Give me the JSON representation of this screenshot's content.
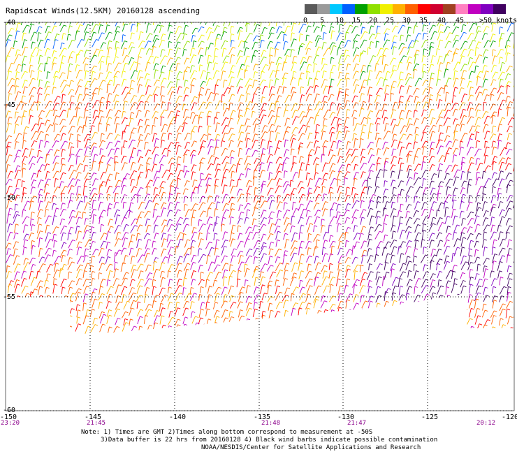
{
  "title": "Rapidscat Winds(12.5KM) 20160128 ascending",
  "colorbar": {
    "unit_label": ">50 knots",
    "ticks": [
      "0",
      "5",
      "10",
      "15",
      "20",
      "25",
      "30",
      "35",
      "40",
      "45"
    ],
    "colors": [
      "#5a5a5a",
      "#9a9a9a",
      "#00c8ff",
      "#0060ff",
      "#00a000",
      "#90e000",
      "#f0f000",
      "#ffb000",
      "#ff6000",
      "#ff0000",
      "#d00030",
      "#a04020",
      "#ff80c0",
      "#c000c0",
      "#8000c0",
      "#400060"
    ]
  },
  "latitudes": [
    "-40",
    "-45",
    "-50",
    "-55",
    "-60"
  ],
  "longitudes": [
    "-150",
    "-145",
    "-140",
    "-135",
    "-130",
    "-125",
    "-120"
  ],
  "times": [
    "23:20",
    "21:45",
    "21:48",
    "21:47",
    "20:12"
  ],
  "notes": [
    "Note: 1) Times are GMT 2)Times along bottom correspond to measurement at -50S",
    "3)Data buffer is 22 hrs from 20160128 4) Black wind barbs indicate possible contamination",
    "NOAA/NESDIS/Center for Satellite Applications and Research"
  ]
}
